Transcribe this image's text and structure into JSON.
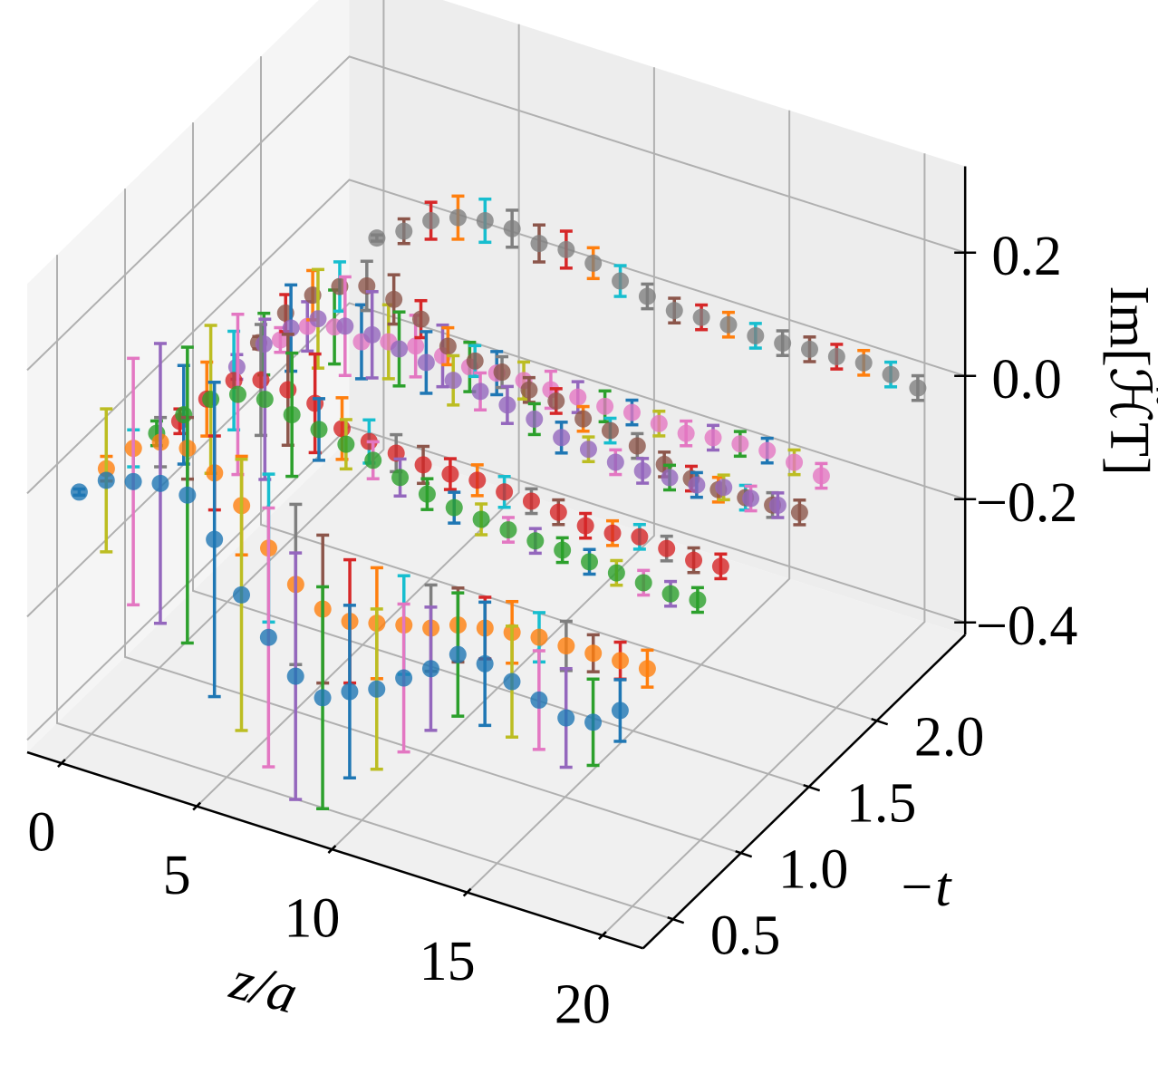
{
  "chart_data": {
    "type": "errorbar3d",
    "xlabel": "z/a",
    "ylabel": "−t",
    "zlabel": "Im[ℋ̃T]",
    "xlim": [
      -1.27,
      21.5
    ],
    "ylim": [
      0.28,
      2.65
    ],
    "zlim": [
      -0.42,
      0.34
    ],
    "xticks": [
      0,
      5,
      10,
      15,
      20
    ],
    "yticks": [
      0.5,
      {
        "value": 1.0,
        "label": "1.0"
      },
      1.5,
      {
        "value": 2.0,
        "label": "2.0"
      }
    ],
    "zticks": [
      {
        "value": -0.4,
        "label": "−0.4"
      },
      {
        "value": -0.2,
        "label": "−0.2"
      },
      {
        "value": 0.0,
        "label": "0.0"
      },
      0.2
    ],
    "grid": true,
    "color_cycle": [
      "#1f77b4",
      "#ff7f0e",
      "#2ca02c",
      "#d62728",
      "#9467bd",
      "#8c564b",
      "#e377c2",
      "#7f7f7f",
      "#bcbd22",
      "#17becf"
    ],
    "x": [
      0,
      1,
      2,
      3,
      4,
      5,
      6,
      7,
      8,
      9,
      10,
      11,
      12,
      13,
      14,
      15,
      16,
      17,
      18,
      19,
      20
    ],
    "series": [
      {
        "t": 0.41,
        "color": "#1f77b4",
        "values": [
          -0.008,
          0.025,
          0.037,
          0.048,
          0.043,
          -0.015,
          -0.091,
          -0.146,
          -0.195,
          -0.216,
          -0.192,
          -0.174,
          -0.142,
          -0.113,
          -0.076,
          -0.077,
          -0.092,
          -0.108,
          -0.123,
          -0.116,
          -0.083
        ],
        "errors": [
          0.005,
          0.116,
          0.2,
          0.227,
          0.24,
          0.255,
          0.22,
          0.21,
          0.2,
          0.18,
          0.14,
          0.13,
          0.12,
          0.1,
          0.1,
          0.1,
          0.09,
          0.08,
          0.08,
          0.07,
          0.05
        ]
      },
      {
        "t": 0.61,
        "color": "#ff7f0e",
        "values": [
          -0.013,
          0.034,
          0.058,
          0.062,
          0.036,
          -0.003,
          -0.058,
          -0.103,
          -0.129,
          -0.135,
          -0.124,
          -0.113,
          -0.104,
          -0.085,
          -0.076,
          -0.069,
          -0.063,
          -0.063,
          -0.061,
          -0.059,
          -0.058
        ],
        "errors": [
          0.02,
          0.03,
          0.04,
          0.05,
          0.06,
          0.08,
          0.12,
          0.13,
          0.12,
          0.1,
          0.09,
          0.08,
          0.07,
          0.06,
          0.05,
          0.05,
          0.04,
          0.04,
          0.03,
          0.03,
          0.03
        ]
      },
      {
        "t": 0.98,
        "color": "#2ca02c",
        "values": [
          -0.035,
          0.009,
          0.048,
          0.07,
          0.076,
          0.065,
          0.055,
          0.045,
          0.033,
          0.019,
          0.006,
          -0.002,
          -0.007,
          -0.01,
          -0.014,
          -0.015,
          -0.02,
          -0.024,
          -0.026,
          -0.03,
          -0.026
        ],
        "errors": [
          0.02,
          0.08,
          0.12,
          0.13,
          0.13,
          0.1,
          0.05,
          0.04,
          0.03,
          0.03,
          0.025,
          0.025,
          0.025,
          0.02,
          0.02,
          0.02,
          0.02,
          0.02,
          0.02,
          0.02,
          0.02
        ]
      },
      {
        "t": 1.15,
        "color": "#d62728",
        "values": [
          -0.052,
          -0.002,
          0.042,
          0.057,
          0.055,
          0.047,
          0.02,
          0.013,
          0.008,
          0.003,
          0.002,
          0.006,
          0.001,
          0.0,
          -0.004,
          -0.012,
          -0.01,
          -0.002,
          -0.007,
          -0.012,
          -0.008
        ],
        "errors": [
          0.02,
          0.06,
          0.08,
          0.09,
          0.09,
          0.08,
          0.05,
          0.035,
          0.03,
          0.03,
          0.025,
          0.025,
          0.025,
          0.02,
          0.02,
          0.02,
          0.02,
          0.02,
          0.02,
          0.02,
          0.02
        ]
      },
      {
        "t": 1.57,
        "color": "#9467bd",
        "values": [
          -0.054,
          -0.003,
          0.037,
          0.066,
          0.068,
          0.068,
          0.059,
          0.051,
          0.036,
          0.032,
          0.024,
          0.015,
          -0.001,
          -0.006,
          -0.013,
          -0.013,
          -0.01,
          -0.008,
          0.002,
          -0.002,
          0.001
        ],
        "errors": [
          0.02,
          0.05,
          0.07,
          0.08,
          0.08,
          0.07,
          0.06,
          0.05,
          0.04,
          0.03,
          0.03,
          0.025,
          0.025,
          0.02,
          0.02,
          0.02,
          0.02,
          0.02,
          0.02,
          0.02,
          0.02
        ]
      },
      {
        "t": 1.73,
        "color": "#8c564b",
        "values": [
          -0.049,
          0.013,
          0.056,
          0.084,
          0.099,
          0.091,
          0.073,
          0.043,
          0.033,
          0.029,
          0.014,
          0.01,
          -0.005,
          -0.01,
          -0.021,
          -0.037,
          -0.046,
          -0.05,
          -0.049,
          -0.047,
          -0.045
        ],
        "errors": [
          0.01,
          0.03,
          0.04,
          0.04,
          0.04,
          0.04,
          0.03,
          0.03,
          0.025,
          0.025,
          0.02,
          0.02,
          0.02,
          0.02,
          0.02,
          0.02,
          0.02,
          0.02,
          0.02,
          0.02,
          0.02
        ]
      },
      {
        "t": 1.89,
        "color": "#e377c2",
        "values": [
          -0.079,
          -0.043,
          -0.03,
          -0.04,
          -0.026,
          -0.019,
          -0.021,
          -0.025,
          -0.021,
          -0.019,
          -0.02,
          -0.018,
          -0.019,
          -0.015,
          -0.019,
          -0.021,
          -0.014,
          -0.01,
          -0.007,
          -0.012,
          -0.02
        ],
        "errors": [
          0.02,
          0.04,
          0.06,
          0.06,
          0.06,
          0.05,
          0.05,
          0.04,
          0.035,
          0.03,
          0.03,
          0.025,
          0.025,
          0.02,
          0.02,
          0.02,
          0.02,
          0.02,
          0.02,
          0.02,
          0.02
        ]
      },
      {
        "t": 2.6,
        "color": "#7f7f7f",
        "values": [
          -0.066,
          -0.041,
          -0.01,
          0.009,
          0.018,
          0.019,
          0.009,
          0.013,
          0.005,
          -0.01,
          -0.021,
          -0.03,
          -0.027,
          -0.025,
          -0.029,
          -0.027,
          -0.023,
          -0.021,
          -0.017,
          -0.022,
          -0.03
        ],
        "errors": [
          0.005,
          0.02,
          0.03,
          0.035,
          0.035,
          0.03,
          0.03,
          0.03,
          0.025,
          0.025,
          0.02,
          0.02,
          0.02,
          0.02,
          0.02,
          0.02,
          0.02,
          0.02,
          0.02,
          0.02,
          0.02
        ]
      }
    ]
  }
}
